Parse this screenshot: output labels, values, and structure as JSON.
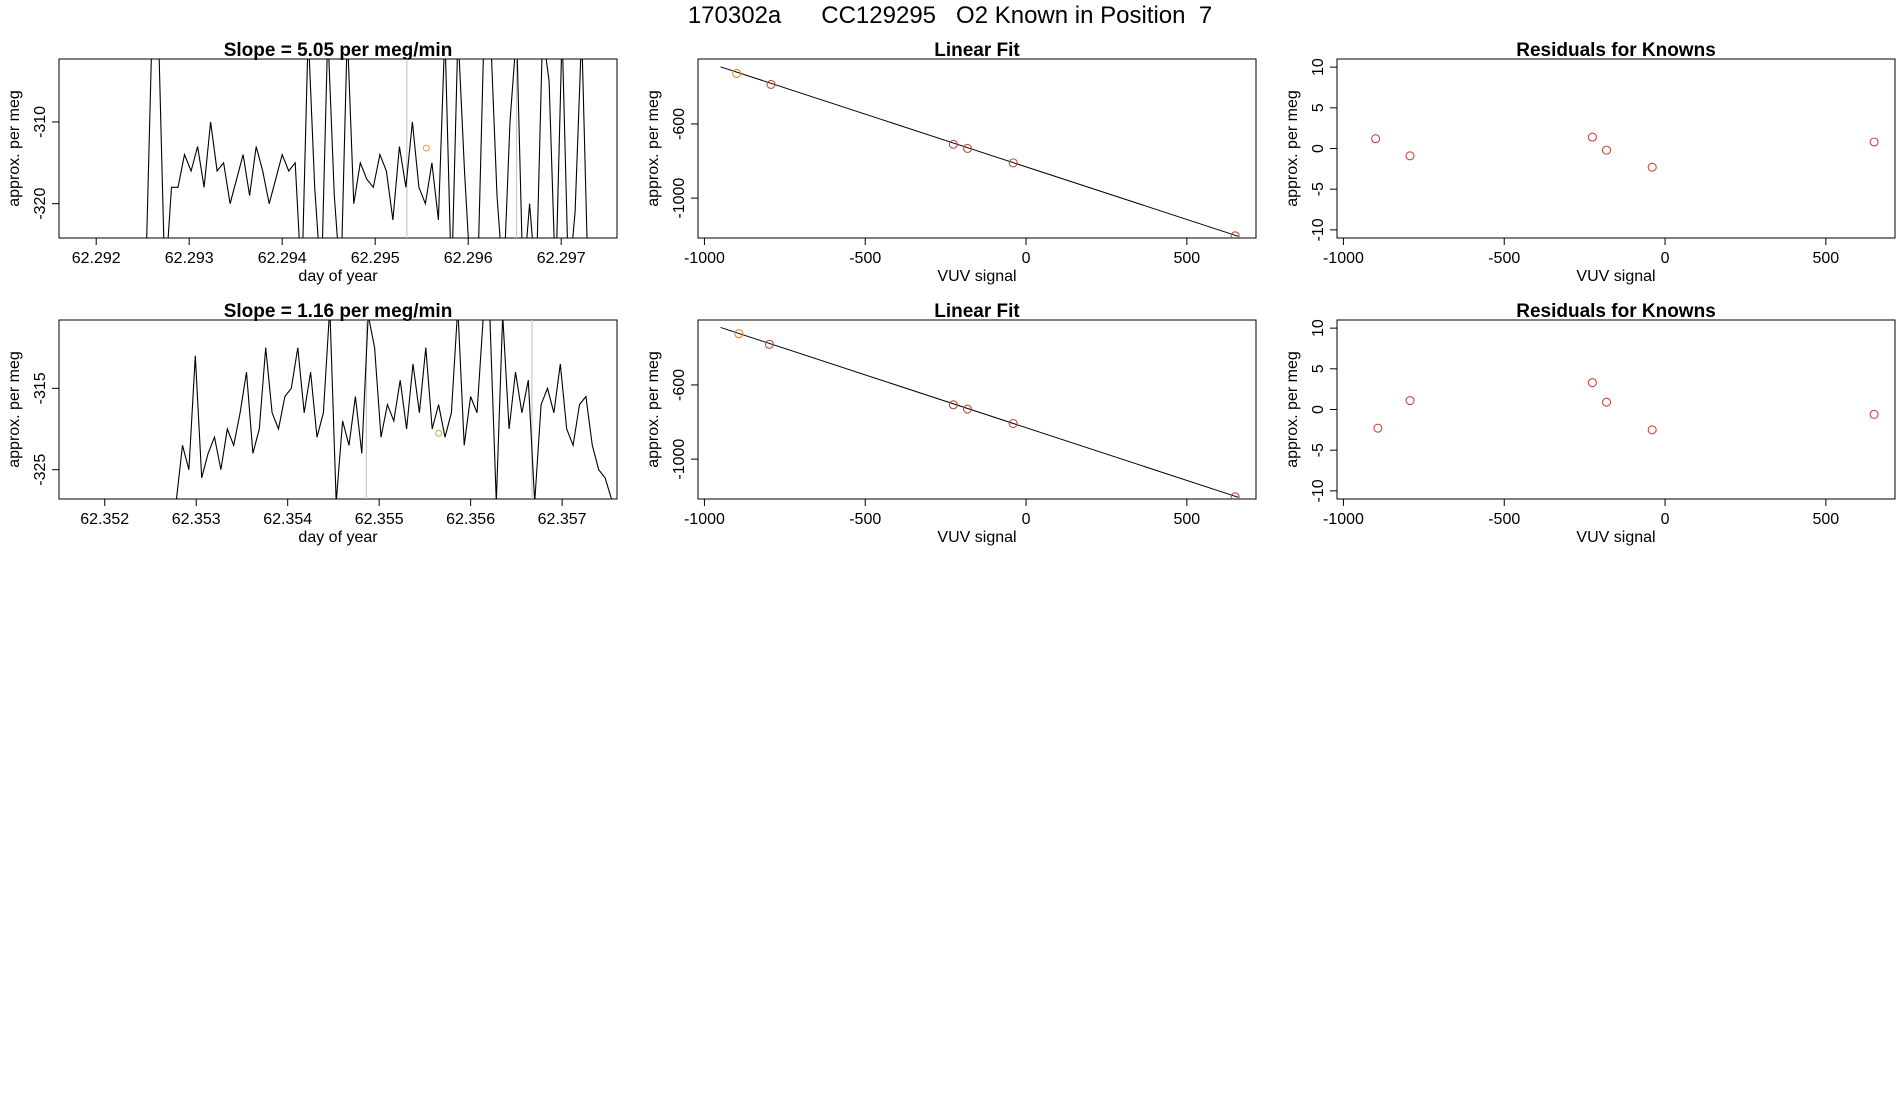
{
  "page": {
    "title": "170302a      CC129295   O2 Known in Position  7"
  },
  "chart_data": [
    {
      "id": "r1-timeseries",
      "type": "line",
      "title": "Slope =  5.05  per meg/min",
      "xlabel": "day of year",
      "ylabel": "approx. per meg",
      "xlim": [
        62.2916,
        62.2976
      ],
      "ylim": [
        -324.2,
        -302.3
      ],
      "xticks": [
        "62.292",
        "62.293",
        "62.294",
        "62.295",
        "62.296",
        "62.297"
      ],
      "yticks": [
        "-310",
        "-320"
      ],
      "grey_vlines": [
        62.29534,
        62.29652
      ],
      "marker": {
        "x": 62.29555,
        "y": -313.2,
        "color": "#e8a040"
      },
      "x": [
        62.29253,
        62.2926,
        62.29267,
        62.29274,
        62.29281,
        62.29288,
        62.29295,
        62.29302,
        62.29309,
        62.29316,
        62.29323,
        62.2933,
        62.29337,
        62.29344,
        62.29351,
        62.29358,
        62.29365,
        62.29372,
        62.29379,
        62.29386,
        62.29393,
        62.294,
        62.29407,
        62.29414,
        62.29421,
        62.29428,
        62.29435,
        62.29442,
        62.29449,
        62.29456,
        62.29463,
        62.2947,
        62.29477,
        62.29484,
        62.29491,
        62.29498,
        62.29505,
        62.29512,
        62.29519,
        62.29526,
        62.29533,
        62.2954,
        62.29547,
        62.29554,
        62.29561,
        62.29568,
        62.29575,
        62.29582,
        62.29589,
        62.29596,
        62.29603,
        62.2961,
        62.29617,
        62.29624,
        62.29631,
        62.29638,
        62.29645,
        62.29652,
        62.29659,
        62.29666,
        62.29673,
        62.2968,
        62.29687,
        62.29694,
        62.29701,
        62.29708,
        62.29715,
        62.29722,
        62.29729
      ],
      "y": [
        -330,
        -299,
        -299,
        -330,
        -318,
        -318,
        -314,
        -316,
        -313,
        -318,
        -310,
        -316,
        -315,
        -320,
        -317,
        -314,
        -319,
        -313,
        -316,
        -320,
        -317,
        -314,
        -316,
        -315,
        -330,
        -299,
        -318,
        -330,
        -299,
        -319,
        -330,
        -299,
        -320,
        -315,
        -317,
        -318,
        -314,
        -316,
        -322,
        -313,
        -318,
        -310,
        -318,
        -320,
        -315,
        -322,
        -299,
        -330,
        -299,
        -316,
        -330,
        -330,
        -299,
        -299,
        -319,
        -330,
        -310,
        -299,
        -330,
        -320,
        -330,
        -299,
        -305,
        -330,
        -299,
        -330,
        -321,
        -299,
        -330
      ]
    },
    {
      "id": "r1-fit",
      "type": "scatter",
      "title": "Linear Fit",
      "xlabel": "VUV signal",
      "ylabel": "approx. per meg",
      "xlim": [
        -1020,
        715
      ],
      "ylim": [
        -1215,
        -250
      ],
      "xticks": [
        -1000,
        -500,
        0,
        500
      ],
      "yticks": [
        -600,
        -1000
      ],
      "points": [
        [
          -900,
          -328
        ],
        [
          -793,
          -387
        ],
        [
          -226,
          -710
        ],
        [
          -182,
          -732
        ],
        [
          -40,
          -810
        ],
        [
          650,
          -1203
        ]
      ],
      "fit_line": [
        [
          -950,
          -292
        ],
        [
          660,
          -1206
        ]
      ],
      "point_colors": [
        "#e08a2e",
        "#c04a40",
        "#c04a40",
        "#c04a40",
        "#c04a40",
        "#c04a40"
      ]
    },
    {
      "id": "r1-resid",
      "type": "scatter",
      "title": "Residuals for Knowns",
      "xlabel": "VUV signal",
      "ylabel": "approx. per meg",
      "xlim": [
        -1020,
        715
      ],
      "ylim": [
        -11,
        11
      ],
      "xticks": [
        -1000,
        -500,
        0,
        500
      ],
      "yticks": [
        10,
        5,
        0,
        -5,
        -10
      ],
      "points": [
        [
          -900,
          1.2
        ],
        [
          -793,
          -0.9
        ],
        [
          -226,
          1.4
        ],
        [
          -182,
          -0.2
        ],
        [
          -40,
          -2.3
        ],
        [
          650,
          0.8
        ]
      ],
      "point_colors": [
        "#c04a40",
        "#c04a40",
        "#c04a40",
        "#c04a40",
        "#c04a40",
        "#c04a40"
      ]
    },
    {
      "id": "r2-timeseries",
      "type": "line",
      "title": "Slope =  1.16  per meg/min",
      "xlabel": "day of year",
      "ylabel": "approx. per meg",
      "xlim": [
        62.3515,
        62.3576
      ],
      "ylim": [
        -328.6,
        -306.6
      ],
      "xticks": [
        "62.352",
        "62.353",
        "62.354",
        "62.355",
        "62.356",
        "62.357"
      ],
      "yticks": [
        "-315",
        "-325"
      ],
      "grey_vlines": [
        62.35486,
        62.35667
      ],
      "marker": {
        "x": 62.35565,
        "y": -320.5,
        "color": "#e8a040"
      },
      "x": [
        62.35278,
        62.35285,
        62.35292,
        62.35299,
        62.35306,
        62.35313,
        62.3532,
        62.35327,
        62.35334,
        62.35341,
        62.35348,
        62.35355,
        62.35362,
        62.35369,
        62.35376,
        62.35383,
        62.3539,
        62.35397,
        62.35404,
        62.35411,
        62.35418,
        62.35425,
        62.35432,
        62.35439,
        62.35446,
        62.35453,
        62.3546,
        62.35467,
        62.35474,
        62.35481,
        62.35488,
        62.35495,
        62.35502,
        62.35509,
        62.35516,
        62.35523,
        62.3553,
        62.35537,
        62.35544,
        62.35551,
        62.35558,
        62.35565,
        62.35572,
        62.35579,
        62.35586,
        62.35593,
        62.356,
        62.35607,
        62.35614,
        62.35621,
        62.35628,
        62.35635,
        62.35642,
        62.35649,
        62.35656,
        62.35663,
        62.3567,
        62.35677,
        62.35684,
        62.35691,
        62.35698,
        62.35705,
        62.35712,
        62.35719,
        62.35726,
        62.35733,
        62.3574,
        62.35747,
        62.35754
      ],
      "y": [
        -329,
        -322,
        -325,
        -311,
        -326,
        -323,
        -321,
        -325,
        -320,
        -322,
        -318,
        -313,
        -323,
        -320,
        -310,
        -318,
        -320,
        -316,
        -315,
        -310,
        -318,
        -313,
        -321,
        -318,
        -305,
        -329,
        -319,
        -322,
        -316,
        -323,
        -306,
        -310,
        -321,
        -317,
        -319,
        -314,
        -320,
        -312,
        -318,
        -310,
        -320,
        -317,
        -321,
        -318,
        -305,
        -322,
        -316,
        -318,
        -306,
        -306,
        -329,
        -306,
        -320,
        -313,
        -318,
        -314,
        -329,
        -317,
        -315,
        -318,
        -312,
        -320,
        -322,
        -317,
        -316,
        -322,
        -325,
        -326,
        -328.6
      ]
    },
    {
      "id": "r2-fit",
      "type": "scatter",
      "title": "Linear Fit",
      "xlabel": "VUV signal",
      "ylabel": "approx. per meg",
      "xlim": [
        -1020,
        715
      ],
      "ylim": [
        -1215,
        -250
      ],
      "xticks": [
        -1000,
        -500,
        0,
        500
      ],
      "yticks": [
        -600,
        -1000
      ],
      "points": [
        [
          -893,
          -324
        ],
        [
          -798,
          -381
        ],
        [
          -226,
          -707
        ],
        [
          -182,
          -730
        ],
        [
          -40,
          -808
        ],
        [
          650,
          -1203
        ]
      ],
      "fit_line": [
        [
          -950,
          -290
        ],
        [
          660,
          -1206
        ]
      ],
      "point_colors": [
        "#e08a2e",
        "#c04a40",
        "#c04a40",
        "#c04a40",
        "#c04a40",
        "#c04a40"
      ]
    },
    {
      "id": "r2-resid",
      "type": "scatter",
      "title": "Residuals for Knowns",
      "xlabel": "VUV signal",
      "ylabel": "approx. per meg",
      "xlim": [
        -1020,
        715
      ],
      "ylim": [
        -11,
        11
      ],
      "xticks": [
        -1000,
        -500,
        0,
        500
      ],
      "yticks": [
        10,
        5,
        0,
        -5,
        -10
      ],
      "points": [
        [
          -893,
          -2.3
        ],
        [
          -793,
          1.1
        ],
        [
          -226,
          3.3
        ],
        [
          -182,
          0.9
        ],
        [
          -40,
          -2.5
        ],
        [
          650,
          -0.6
        ]
      ],
      "point_colors": [
        "#c04a40",
        "#c04a40",
        "#c04a40",
        "#c04a40",
        "#c04a40",
        "#c04a40"
      ]
    }
  ]
}
